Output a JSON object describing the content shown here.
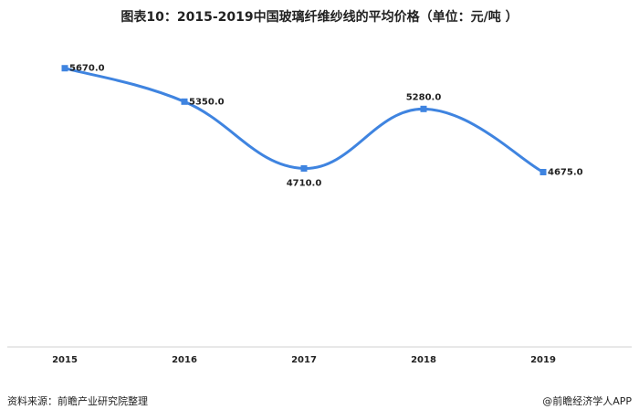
{
  "chart_data": {
    "type": "line",
    "title": "图表10：2015-2019中国玻璃纤维纱线的平均价格（单位：元/吨 ）",
    "categories": [
      "2015",
      "2016",
      "2017",
      "2018",
      "2019"
    ],
    "series": [
      {
        "name": "平均价格",
        "color": "#3f84e0",
        "values": [
          5670,
          5350,
          4710,
          5280,
          4675
        ],
        "value_labels": [
          "5670.0",
          "5350.0",
          "4710.0",
          "5280.0",
          "4675.0"
        ]
      }
    ],
    "ylim": [
      3000,
      6000
    ],
    "source": "资料来源：前瞻产业研究院整理",
    "credit": "@前瞻经济学人APP"
  }
}
